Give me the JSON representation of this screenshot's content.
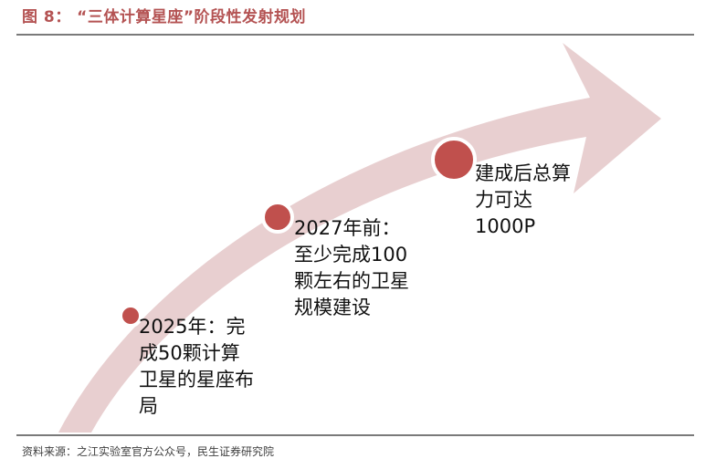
{
  "header": {
    "title": "图 8：  “三体计算星座”阶段性发射规划"
  },
  "colors": {
    "title": "#b45353",
    "arrow_fill": "#e8cfd0",
    "marker_fill": "#c0504d",
    "marker_ring": "#ffffff"
  },
  "milestones": [
    {
      "label": "2025年：完\n成50颗计算\n卫星的星座布\n局"
    },
    {
      "label": "2027年前：\n至少完成100\n颗左右的卫星\n规模建设"
    },
    {
      "label": "建成后总算\n力可达\n1000P"
    }
  ],
  "footer": {
    "source": "资料来源：之江实验室官方公众号，民生证券研究院"
  }
}
